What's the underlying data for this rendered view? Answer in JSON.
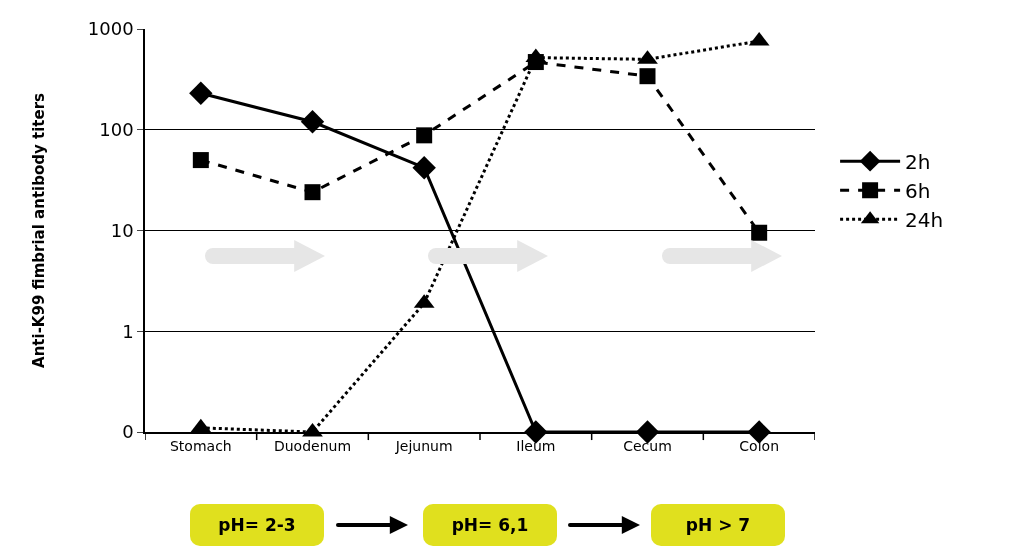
{
  "chart_data": {
    "type": "line",
    "ylabel": "Anti-K99 fimbrial antibody titers",
    "categories": [
      "Stomach",
      "Duodenum",
      "Jejunum",
      "Ileum",
      "Cecum",
      "Colon"
    ],
    "series": [
      {
        "name": "2h",
        "color": "#000000",
        "marker": "diamond",
        "line_style": "solid",
        "values": [
          230,
          120,
          42,
          0.1,
          0.1,
          0.1
        ]
      },
      {
        "name": "6h",
        "color": "#000000",
        "marker": "square",
        "line_style": "dashed",
        "values": [
          50,
          24,
          88,
          470,
          340,
          9.5
        ]
      },
      {
        "name": "24h",
        "color": "#000000",
        "marker": "triangle",
        "line_style": "dotted",
        "values": [
          0.11,
          0.1,
          1.9,
          520,
          500,
          760
        ]
      }
    ],
    "log": "y",
    "ylim": [
      0.1,
      1000
    ],
    "yticks": [
      {
        "value": 0.1,
        "label": "0"
      },
      1,
      10,
      100,
      1000
    ],
    "grid": "y",
    "legend": "right",
    "annotations": [
      "pH= 2-3",
      "pH= 6,1",
      "pH > 7"
    ]
  }
}
